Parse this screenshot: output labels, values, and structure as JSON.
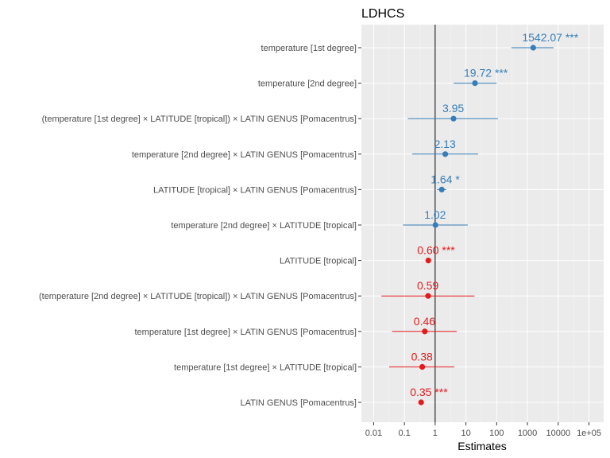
{
  "chart_data": {
    "type": "forest",
    "title": "LDHCS",
    "xlabel": "Estimates",
    "x_scale": "log10",
    "xlim": [
      0.004,
      300000
    ],
    "reference_line": 1,
    "x_ticks": [
      0.01,
      0.1,
      1,
      10,
      100,
      1000,
      10000,
      100000
    ],
    "x_tick_labels": [
      "0.01",
      "0.1",
      "1",
      "10",
      "100",
      "1000",
      "10000",
      "1e+05"
    ],
    "colors": {
      "positive": "#377eb8",
      "negative": "#e41a1c"
    },
    "terms": [
      {
        "label": "temperature [1st degree]",
        "estimate": 1542.07,
        "ci": [
          300,
          7000
        ],
        "value_label": "1542.07 ***",
        "direction": "positive"
      },
      {
        "label": "temperature [2nd degree]",
        "estimate": 19.72,
        "ci": [
          4,
          100
        ],
        "value_label": "19.72 ***",
        "direction": "positive"
      },
      {
        "label": "(temperature [1st degree] × LATITUDE [tropical]) × LATIN GENUS [Pomacentrus]",
        "estimate": 3.95,
        "ci": [
          0.13,
          110
        ],
        "value_label": "3.95",
        "direction": "positive"
      },
      {
        "label": "temperature [2nd degree] × LATIN GENUS [Pomacentrus]",
        "estimate": 2.13,
        "ci": [
          0.18,
          25
        ],
        "value_label": "2.13",
        "direction": "positive"
      },
      {
        "label": "LATITUDE [tropical] × LATIN GENUS [Pomacentrus]",
        "estimate": 1.64,
        "ci": [
          1.15,
          2.3
        ],
        "value_label": "1.64 *",
        "direction": "positive"
      },
      {
        "label": "temperature [2nd degree] × LATITUDE [tropical]",
        "estimate": 1.02,
        "ci": [
          0.09,
          11.5
        ],
        "value_label": "1.02",
        "direction": "positive"
      },
      {
        "label": "LATITUDE [tropical]",
        "estimate": 0.6,
        "ci": [
          0.5,
          0.72
        ],
        "value_label": "0.60 ***",
        "direction": "negative"
      },
      {
        "label": "(temperature [2nd degree] × LATITUDE [tropical]) × LATIN GENUS [Pomacentrus]",
        "estimate": 0.59,
        "ci": [
          0.018,
          19
        ],
        "value_label": "0.59",
        "direction": "negative"
      },
      {
        "label": "temperature [1st degree] × LATIN GENUS [Pomacentrus]",
        "estimate": 0.46,
        "ci": [
          0.04,
          5
        ],
        "value_label": "0.46",
        "direction": "negative"
      },
      {
        "label": "temperature [1st degree] × LATITUDE [tropical]",
        "estimate": 0.38,
        "ci": [
          0.032,
          4.2
        ],
        "value_label": "0.38",
        "direction": "negative"
      },
      {
        "label": "LATIN GENUS [Pomacentrus]",
        "estimate": 0.35,
        "ci": [
          0.3,
          0.42
        ],
        "value_label": "0.35 ***",
        "direction": "negative"
      }
    ]
  }
}
